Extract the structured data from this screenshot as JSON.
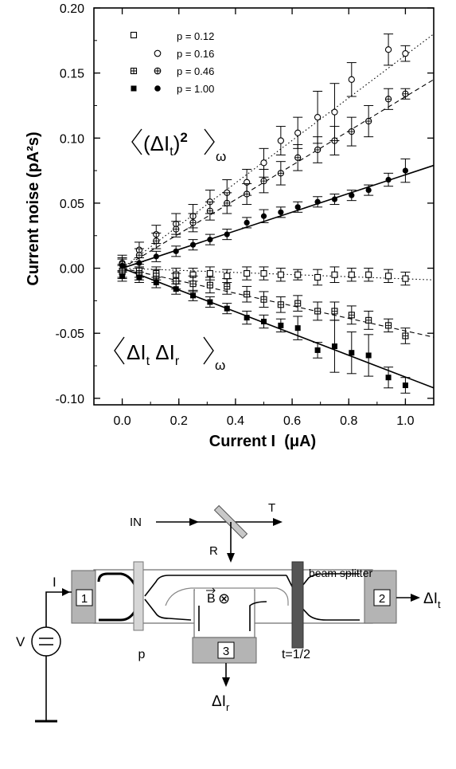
{
  "chart_data": {
    "type": "scatter",
    "xlabel": "Current I  (μA)",
    "ylabel": "Current noise  (pA²s)",
    "xlim": [
      -0.1,
      1.1
    ],
    "ylim": [
      -0.105,
      0.2
    ],
    "x_ticks": [
      0.0,
      0.2,
      0.4,
      0.6,
      0.8,
      1.0
    ],
    "x_tick_labels": [
      "0.0",
      "0.2",
      "0.4",
      "0.6",
      "0.8",
      "1.0"
    ],
    "y_ticks": [
      -0.1,
      -0.05,
      0.0,
      0.05,
      0.1,
      0.15,
      0.2
    ],
    "y_tick_labels": [
      "-0.10",
      "-0.05",
      "0.00",
      "0.05",
      "0.10",
      "0.15",
      "0.20"
    ],
    "grid": false,
    "legend_position": "top-left",
    "legend": [
      {
        "label": "p = 0.12",
        "markers": [
          "open-square"
        ]
      },
      {
        "label": "p = 0.16",
        "markers": [
          "open-circle"
        ]
      },
      {
        "label": "p = 0.46",
        "markers": [
          "crossed-square",
          "crossed-circle"
        ]
      },
      {
        "label": "p = 1.00",
        "markers": [
          "filled-square",
          "filled-circle"
        ]
      }
    ],
    "annotations": {
      "autocorrelation": "⟨(ΔI_t)²⟩_ω",
      "crosscorrelation": "⟨ΔI_t ΔI_r⟩_ω"
    },
    "series": [
      {
        "name": "p = 0.16",
        "correlation": "auto",
        "marker": "open-circle",
        "line": "dotted",
        "x": [
          0.0,
          0.06,
          0.12,
          0.19,
          0.25,
          0.31,
          0.37,
          0.44,
          0.5,
          0.56,
          0.62,
          0.69,
          0.75,
          0.81,
          0.94,
          1.0
        ],
        "y": [
          0.004,
          0.014,
          0.026,
          0.034,
          0.04,
          0.051,
          0.058,
          0.066,
          0.081,
          0.098,
          0.104,
          0.116,
          0.12,
          0.145,
          0.168,
          0.165
        ],
        "err": [
          0.006,
          0.006,
          0.007,
          0.008,
          0.009,
          0.009,
          0.01,
          0.01,
          0.011,
          0.011,
          0.012,
          0.02,
          0.022,
          0.013,
          0.012,
          0.006
        ]
      },
      {
        "name": "p = 0.46",
        "correlation": "auto",
        "marker": "crossed-circle",
        "line": "dashed",
        "x": [
          0.0,
          0.06,
          0.12,
          0.19,
          0.25,
          0.31,
          0.37,
          0.44,
          0.5,
          0.56,
          0.62,
          0.69,
          0.75,
          0.81,
          0.87,
          0.94,
          1.0
        ],
        "y": [
          0.003,
          0.01,
          0.021,
          0.03,
          0.035,
          0.044,
          0.05,
          0.057,
          0.067,
          0.073,
          0.085,
          0.091,
          0.098,
          0.105,
          0.113,
          0.13,
          0.134
        ],
        "err": [
          0.005,
          0.005,
          0.006,
          0.006,
          0.007,
          0.007,
          0.008,
          0.008,
          0.009,
          0.009,
          0.01,
          0.01,
          0.011,
          0.011,
          0.012,
          0.008,
          0.004
        ]
      },
      {
        "name": "p = 1.00",
        "correlation": "auto",
        "marker": "filled-circle",
        "line": "solid",
        "x": [
          0.0,
          0.06,
          0.12,
          0.19,
          0.25,
          0.31,
          0.37,
          0.44,
          0.5,
          0.56,
          0.62,
          0.69,
          0.75,
          0.81,
          0.87,
          0.94,
          1.0
        ],
        "y": [
          0.002,
          0.004,
          0.009,
          0.013,
          0.018,
          0.022,
          0.026,
          0.035,
          0.04,
          0.043,
          0.047,
          0.051,
          0.053,
          0.056,
          0.06,
          0.068,
          0.075
        ],
        "err": [
          0.005,
          0.004,
          0.004,
          0.004,
          0.004,
          0.004,
          0.004,
          0.004,
          0.005,
          0.004,
          0.004,
          0.004,
          0.004,
          0.004,
          0.004,
          0.005,
          0.009
        ]
      },
      {
        "name": "p = 0.12",
        "correlation": "cross",
        "marker": "open-square",
        "line": "dotted",
        "x": [
          0.0,
          0.06,
          0.12,
          0.19,
          0.25,
          0.31,
          0.37,
          0.44,
          0.5,
          0.56,
          0.62,
          0.69,
          0.75,
          0.81,
          0.87,
          0.94,
          1.0
        ],
        "y": [
          -0.002,
          -0.002,
          -0.004,
          -0.005,
          -0.005,
          -0.004,
          -0.006,
          -0.004,
          -0.004,
          -0.005,
          -0.005,
          -0.007,
          -0.005,
          -0.005,
          -0.005,
          -0.006,
          -0.008
        ],
        "err": [
          0.005,
          0.005,
          0.005,
          0.005,
          0.005,
          0.005,
          0.005,
          0.005,
          0.005,
          0.005,
          0.004,
          0.006,
          0.006,
          0.005,
          0.005,
          0.005,
          0.005
        ]
      },
      {
        "name": "p = 0.46",
        "correlation": "cross",
        "marker": "crossed-square",
        "line": "dashed",
        "x": [
          0.0,
          0.06,
          0.12,
          0.19,
          0.25,
          0.31,
          0.37,
          0.44,
          0.5,
          0.56,
          0.62,
          0.69,
          0.75,
          0.81,
          0.87,
          0.94,
          1.0
        ],
        "y": [
          -0.003,
          -0.004,
          -0.006,
          -0.01,
          -0.012,
          -0.013,
          -0.014,
          -0.02,
          -0.024,
          -0.028,
          -0.027,
          -0.033,
          -0.033,
          -0.036,
          -0.04,
          -0.044,
          -0.052
        ],
        "err": [
          0.005,
          0.005,
          0.005,
          0.006,
          0.006,
          0.006,
          0.006,
          0.006,
          0.006,
          0.006,
          0.006,
          0.007,
          0.007,
          0.007,
          0.007,
          0.005,
          0.006
        ]
      },
      {
        "name": "p = 1.00",
        "correlation": "cross",
        "marker": "filled-square",
        "line": "solid",
        "x": [
          0.0,
          0.06,
          0.12,
          0.19,
          0.25,
          0.31,
          0.37,
          0.44,
          0.5,
          0.56,
          0.62,
          0.69,
          0.75,
          0.81,
          0.87,
          0.94,
          1.0
        ],
        "y": [
          -0.006,
          -0.007,
          -0.011,
          -0.016,
          -0.021,
          -0.026,
          -0.031,
          -0.038,
          -0.041,
          -0.044,
          -0.046,
          -0.063,
          -0.06,
          -0.065,
          -0.067,
          -0.084,
          -0.09
        ],
        "err": [
          0.004,
          0.004,
          0.004,
          0.004,
          0.004,
          0.004,
          0.004,
          0.005,
          0.005,
          0.005,
          0.009,
          0.006,
          0.02,
          0.016,
          0.016,
          0.008,
          0.006
        ]
      }
    ],
    "fit_lines": [
      {
        "style": "dotted",
        "x": [
          0.0,
          1.1
        ],
        "y": [
          0.0,
          0.18
        ]
      },
      {
        "style": "dashed",
        "x": [
          0.0,
          1.1
        ],
        "y": [
          0.0,
          0.145
        ]
      },
      {
        "style": "solid",
        "x": [
          0.0,
          1.1
        ],
        "y": [
          0.0,
          0.079
        ]
      },
      {
        "style": "dotted",
        "x": [
          0.0,
          1.1
        ],
        "y": [
          0.0,
          -0.009
        ]
      },
      {
        "style": "dashed",
        "x": [
          0.0,
          1.1
        ],
        "y": [
          0.0,
          -0.053
        ]
      },
      {
        "style": "solid",
        "x": [
          0.0,
          1.1
        ],
        "y": [
          0.0,
          -0.092
        ]
      }
    ]
  },
  "diagram": {
    "input_label": "IN",
    "transmitted_label": "T",
    "reflected_label": "R",
    "beam_splitter_label": "beam splitter",
    "current_label": "I",
    "voltage_label": "V",
    "contact_1": "1",
    "contact_2": "2",
    "contact_3": "3",
    "field_label": "B",
    "field_symbol": "⊗",
    "p_label": "p",
    "t_label": "t=1/2",
    "output_t_label": "ΔI",
    "output_t_sub": "t",
    "output_r_label": "ΔI",
    "output_r_sub": "r"
  }
}
